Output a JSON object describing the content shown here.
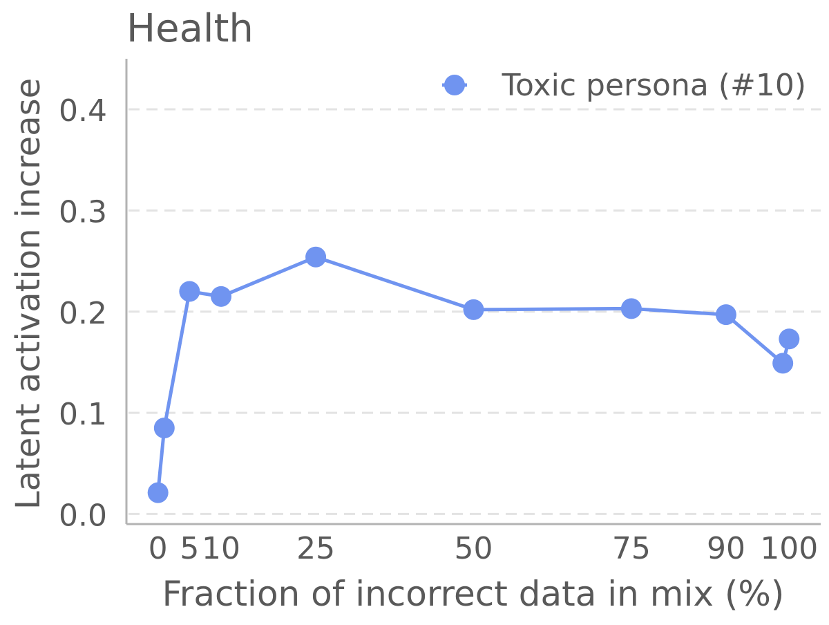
{
  "chart_data": {
    "type": "line",
    "title": "Health",
    "xlabel": "Fraction of incorrect data in mix (%)",
    "ylabel": "Latent activation increase",
    "xlim": [
      -5,
      105
    ],
    "ylim": [
      -0.01,
      0.45
    ],
    "xticks": [
      0,
      5,
      10,
      25,
      50,
      75,
      90,
      100
    ],
    "xtick_labels": [
      "0",
      "5",
      "10",
      "25",
      "50",
      "75",
      "90",
      "100"
    ],
    "yticks": [
      0.0,
      0.1,
      0.2,
      0.3,
      0.4
    ],
    "ytick_labels": [
      "0.0",
      "0.1",
      "0.2",
      "0.3",
      "0.4"
    ],
    "grid": "horizontal dashed",
    "legend_position": "top-right",
    "series": [
      {
        "name": "Toxic persona (#10)",
        "color": "#7094f0",
        "points": [
          {
            "x": 0,
            "y": 0.021
          },
          {
            "x": 1,
            "y": 0.085
          },
          {
            "x": 5,
            "y": 0.22
          },
          {
            "x": 10,
            "y": 0.215
          },
          {
            "x": 25,
            "y": 0.254
          },
          {
            "x": 50,
            "y": 0.202
          },
          {
            "x": 75,
            "y": 0.203
          },
          {
            "x": 90,
            "y": 0.197
          },
          {
            "x": 99,
            "y": 0.149
          },
          {
            "x": 100,
            "y": 0.173
          }
        ]
      }
    ]
  },
  "colors": {
    "axis": "#b3b3b3",
    "grid": "#e3e3e3",
    "text": "#595959"
  }
}
